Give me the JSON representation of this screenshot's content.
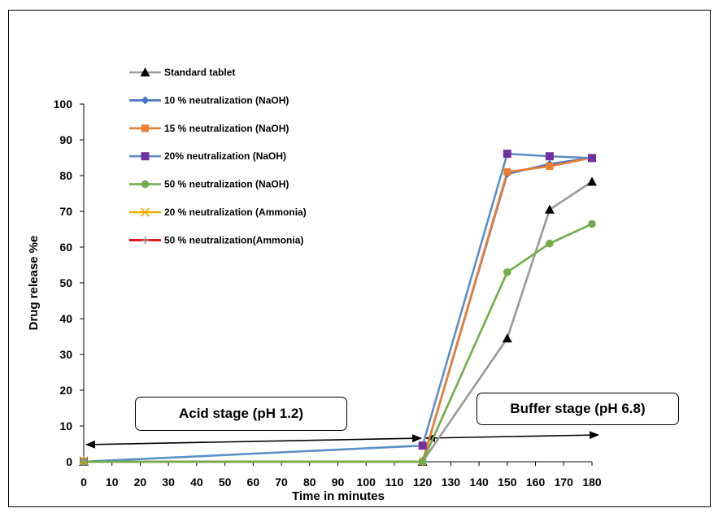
{
  "chart_data": {
    "type": "line",
    "xlabel": "Time in minutes",
    "ylabel": "Drug release %e",
    "xlim": [
      0,
      180
    ],
    "ylim": [
      0,
      100
    ],
    "xticks": [
      0,
      10,
      20,
      30,
      40,
      50,
      60,
      70,
      80,
      90,
      100,
      110,
      120,
      130,
      140,
      150,
      160,
      170,
      180
    ],
    "yticks": [
      0,
      10,
      20,
      30,
      40,
      50,
      60,
      70,
      80,
      90,
      100
    ],
    "grid": false,
    "legend_position": "top-left",
    "series": [
      {
        "name": "Standard tablet",
        "color": "#999999",
        "marker": "triangle",
        "points": [
          [
            0,
            0
          ],
          [
            120,
            0
          ],
          [
            150,
            34.5
          ],
          [
            165,
            70.5
          ],
          [
            180,
            78.3
          ]
        ]
      },
      {
        "name": "10 % neutralization (NaOH)",
        "color": "#4472c4",
        "marker": "diamond",
        "points": [
          [
            0,
            0
          ],
          [
            120,
            0
          ],
          [
            150,
            80.5
          ],
          [
            165,
            83.2
          ],
          [
            180,
            85
          ]
        ]
      },
      {
        "name": "15 % neutralization (NaOH)",
        "color": "#ed7d31",
        "marker": "square",
        "points": [
          [
            0,
            0
          ],
          [
            120,
            0
          ],
          [
            150,
            81
          ],
          [
            165,
            82.6
          ],
          [
            180,
            85
          ]
        ]
      },
      {
        "name": "20% neutralization (NaOH)",
        "color": "#5b8fc7",
        "marker": "square-purple",
        "points": [
          [
            0,
            0
          ],
          [
            120,
            4.5
          ],
          [
            150,
            86.1
          ],
          [
            165,
            85.4
          ],
          [
            180,
            84.9
          ]
        ]
      },
      {
        "name": "50 % neutralization (NaOH)",
        "color": "#70ad47",
        "marker": "circle",
        "points": [
          [
            0,
            0
          ],
          [
            120,
            0
          ],
          [
            150,
            53
          ],
          [
            165,
            61
          ],
          [
            180,
            66.5
          ]
        ]
      },
      {
        "name": "20 % neutralization (Ammonia)",
        "color": "#e8b000",
        "marker": "x",
        "points": [
          [
            0,
            0.3
          ]
        ]
      },
      {
        "name": "50 % neutralization(Ammonia)",
        "color": "#e00000",
        "marker": "plus",
        "points": [
          [
            0,
            0.5
          ]
        ]
      }
    ],
    "annotations": [
      {
        "text": "Acid stage (pH 1.2)"
      },
      {
        "text": "Buffer stage (pH 6.8)"
      }
    ]
  }
}
